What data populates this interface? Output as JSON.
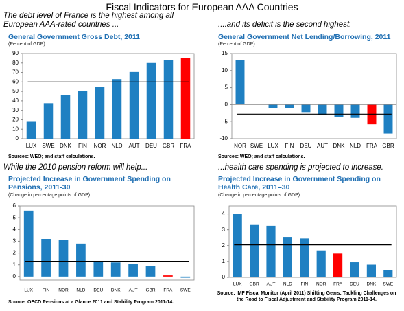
{
  "title": "Fiscal Indicators for European AAA Countries",
  "chart_data": [
    {
      "type": "bar",
      "caption": "The debt level of France is the highest  among all European AAA-rated countries ...",
      "title": "General Government Gross Debt, 2011",
      "subtitle": "(Percent of GDP)",
      "categories": [
        "LUX",
        "SWE",
        "DNK",
        "FIN",
        "NOR",
        "NLD",
        "AUT",
        "DEU",
        "GBR",
        "FRA"
      ],
      "values": [
        18.5,
        37.5,
        46,
        50.5,
        54.5,
        63,
        70.5,
        80,
        83,
        85.5
      ],
      "colors": [
        "#1f80c2",
        "#1f80c2",
        "#1f80c2",
        "#1f80c2",
        "#1f80c2",
        "#1f80c2",
        "#1f80c2",
        "#1f80c2",
        "#1f80c2",
        "#ff0000"
      ],
      "reference_line": 60,
      "ylim": [
        0,
        90
      ],
      "yticks": [
        0,
        10,
        20,
        30,
        40,
        50,
        60,
        70,
        80,
        90
      ],
      "source": "Sources: WEO; and staff calculations."
    },
    {
      "type": "bar",
      "caption": "....and its deficit is the second highest.",
      "title": "General Government Net Lending/Borrowing, 2011",
      "subtitle": "(Percent of GDP)",
      "categories": [
        "NOR",
        "SWE",
        "LUX",
        "FIN",
        "DEU",
        "AUT",
        "DNK",
        "NLD",
        "FRA",
        "GBR"
      ],
      "values": [
        13.1,
        0.1,
        -1.1,
        -1.1,
        -2.2,
        -3,
        -3.6,
        -3.9,
        -5.8,
        -8.5
      ],
      "colors": [
        "#1f80c2",
        "#1f80c2",
        "#1f80c2",
        "#1f80c2",
        "#1f80c2",
        "#1f80c2",
        "#1f80c2",
        "#1f80c2",
        "#ff0000",
        "#1f80c2"
      ],
      "reference_line": -2.8,
      "ylim": [
        -10,
        15
      ],
      "yticks": [
        -10,
        -5,
        0,
        5,
        10,
        15
      ],
      "source": "Sources: WEO; and staff calculations."
    },
    {
      "type": "bar",
      "caption": "While the 2010 pension reform will help...",
      "title": "Projected Increase in Government Spending on Pensions, 2011-30",
      "subtitle": "(Change in percentage points of GDP)",
      "categories": [
        "LUX",
        "FIN",
        "NOR",
        "NLD",
        "DEU",
        "DNK",
        "AUT",
        "GBR",
        "FRA",
        "SWE"
      ],
      "values": [
        5.6,
        3.2,
        3.1,
        2.8,
        1.3,
        1.2,
        1.1,
        0.9,
        0.1,
        -0.1
      ],
      "colors": [
        "#1f80c2",
        "#1f80c2",
        "#1f80c2",
        "#1f80c2",
        "#1f80c2",
        "#1f80c2",
        "#1f80c2",
        "#1f80c2",
        "#ff0000",
        "#1f80c2"
      ],
      "reference_line": 1.3,
      "ylim": [
        -0.3,
        6
      ],
      "yticks": [
        0,
        1,
        2,
        3,
        4,
        5,
        6
      ],
      "source": "Source: OECD Pensions at a Glance 2011 and Stability Program 2011-14."
    },
    {
      "type": "bar",
      "caption": "...health care spending is projected to increase.",
      "title": "Projected Increase in Government Spending on Health Care, 2011–30",
      "subtitle": "(Change in percentage points of GDP)",
      "categories": [
        "LUX",
        "GBR",
        "AUT",
        "NLD",
        "FIN",
        "NOR",
        "FRA",
        "DEU",
        "DNK",
        "SWE"
      ],
      "values": [
        4.0,
        3.3,
        3.25,
        2.55,
        2.45,
        1.7,
        1.5,
        0.95,
        0.8,
        0.45
      ],
      "colors": [
        "#1f80c2",
        "#1f80c2",
        "#1f80c2",
        "#1f80c2",
        "#1f80c2",
        "#1f80c2",
        "#ff0000",
        "#1f80c2",
        "#1f80c2",
        "#1f80c2"
      ],
      "reference_line": 2.05,
      "ylim": [
        0,
        4.5
      ],
      "yticks": [
        0,
        1,
        2,
        3,
        4
      ],
      "source": "Source: IMF Fiscal Monitor (April 2011) Shifting Gears: Tackling Challenges on the Road to Fiscal Adjustment and Stability Program 2011-14."
    }
  ]
}
